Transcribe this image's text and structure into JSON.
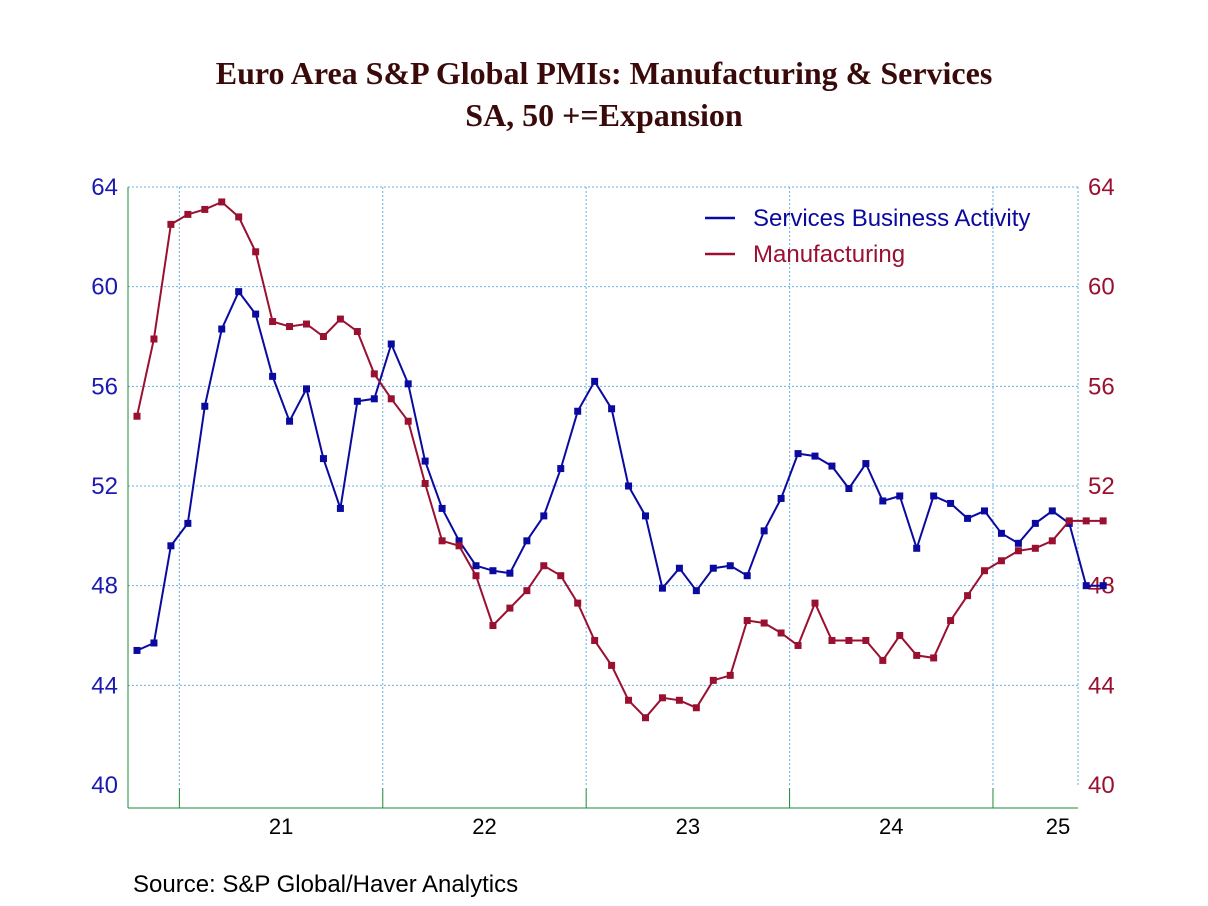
{
  "chart_data": {
    "type": "line",
    "title": "Euro Area S&P Global PMIs: Manufacturing & Services",
    "subtitle": "SA, 50 +=Expansion",
    "xlabel": "",
    "ylabel": "",
    "ylim": [
      40,
      64
    ],
    "y_ticks": [
      "40",
      "44",
      "48",
      "52",
      "56",
      "60",
      "64"
    ],
    "x_ticks": [
      "21",
      "22",
      "23",
      "24",
      "25"
    ],
    "grid": true,
    "legend_position": "top-right",
    "x": [
      "2020-10",
      "2020-11",
      "2020-12",
      "2021-01",
      "2021-02",
      "2021-03",
      "2021-04",
      "2021-05",
      "2021-06",
      "2021-07",
      "2021-08",
      "2021-09",
      "2021-10",
      "2021-11",
      "2021-12",
      "2022-01",
      "2022-02",
      "2022-03",
      "2022-04",
      "2022-05",
      "2022-06",
      "2022-07",
      "2022-08",
      "2022-09",
      "2022-10",
      "2022-11",
      "2022-12",
      "2023-01",
      "2023-02",
      "2023-03",
      "2023-04",
      "2023-05",
      "2023-06",
      "2023-07",
      "2023-08",
      "2023-09",
      "2023-10",
      "2023-11",
      "2023-12",
      "2024-01",
      "2024-02",
      "2024-03",
      "2024-04",
      "2024-05",
      "2024-06",
      "2024-07",
      "2024-08",
      "2024-09",
      "2024-10",
      "2024-11",
      "2024-12",
      "2025-01",
      "2025-02",
      "2025-03",
      "2025-04",
      "2025-05",
      "2025-06",
      "2025-07"
    ],
    "series": [
      {
        "name": "Services Business Activity",
        "color": "#0a0aa0",
        "axis": "left",
        "values": [
          45.4,
          45.7,
          49.6,
          50.5,
          55.2,
          58.3,
          59.8,
          58.9,
          56.4,
          54.6,
          55.9,
          53.1,
          51.1,
          55.4,
          55.5,
          57.7,
          56.1,
          53.0,
          51.1,
          49.8,
          48.8,
          48.6,
          48.5,
          49.8,
          50.8,
          52.7,
          55.0,
          56.2,
          55.1,
          52.0,
          50.8,
          47.9,
          48.7,
          47.8,
          48.7,
          48.8,
          48.4,
          50.2,
          51.5,
          53.3,
          53.2,
          52.8,
          51.9,
          52.9,
          51.4,
          51.6,
          49.5,
          51.6,
          51.3,
          50.7,
          51.0,
          50.1,
          49.7,
          50.5,
          51.0,
          50.5,
          48.0,
          48.0
        ]
      },
      {
        "name": "Manufacturing",
        "color": "#9a1030",
        "axis": "right",
        "values": [
          54.8,
          57.9,
          62.5,
          62.9,
          63.1,
          63.4,
          62.8,
          61.4,
          58.6,
          58.4,
          58.5,
          58.0,
          58.7,
          58.2,
          56.5,
          55.5,
          54.6,
          52.1,
          49.8,
          49.6,
          48.4,
          46.4,
          47.1,
          47.8,
          48.8,
          48.4,
          47.3,
          45.8,
          44.8,
          43.4,
          42.7,
          43.5,
          43.4,
          43.1,
          44.2,
          44.4,
          46.6,
          46.5,
          46.1,
          45.6,
          47.3,
          45.8,
          45.8,
          45.8,
          45.0,
          46.0,
          45.2,
          45.1,
          46.6,
          47.6,
          48.6,
          49.0,
          49.4,
          49.5,
          49.8,
          50.6,
          50.6,
          50.6
        ]
      }
    ],
    "colors": {
      "left_axis": "#1a1ab0",
      "right_axis": "#9a1030",
      "grid": "#6ab0e0",
      "axis_line": "#1a8a3a"
    }
  },
  "source": "Source:  S&P Global/Haver Analytics"
}
